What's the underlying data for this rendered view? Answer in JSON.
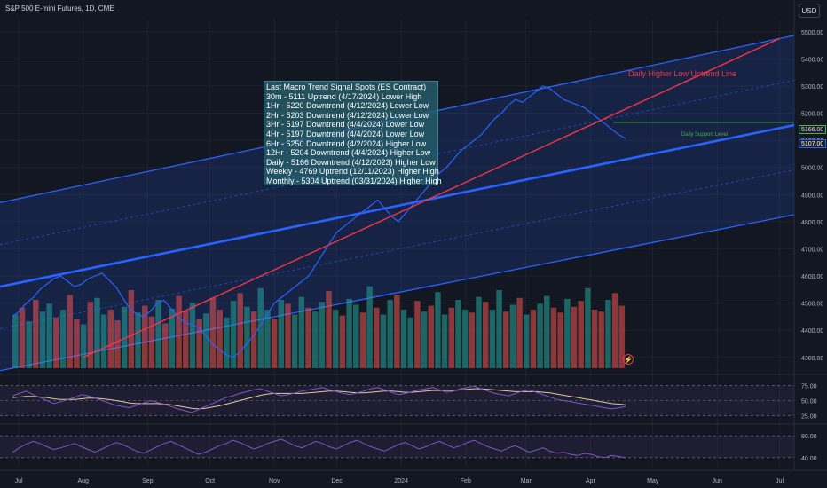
{
  "header": {
    "title": "S&P 500 E-mini Futures, 1D, CME",
    "currency": "USD"
  },
  "annotations": {
    "signal_box_lines": [
      "Last Macro Trend Signal Spots (ES Contract)",
      "30m - 5111 Uptrend (4/17/2024) Lower High",
      "1Hr - 5220 Downtrend (4/12/2024) Lower Low",
      "2Hr - 5203 Downtrend (4/12/2024) Lower Low",
      "3Hr - 5197 Downtrend (4/4/2024) Lower Low",
      "4Hr - 5197 Downtrend (4/4/2024) Lower Low",
      "6Hr - 5250 Downtrend (4/2/2024) Higher Low",
      "12Hr - 5204 Downtrend (4/4/2024) Higher Low",
      "Daily - 5166 Downtrend (4/12/2023) Higher Low",
      "Weekly - 4769 Uptrend (12/11/2023) Higher High",
      "Monthly - 5304 Uptrend (03/31/2024) Higher High"
    ],
    "trend_line_label": "Daily Higher Low Uptrend Line",
    "support_label": "Daily Support Level",
    "support_price": "5166.00",
    "last_price": "5107.00",
    "icon": "lightning-icon"
  },
  "chart_data": {
    "type": "line",
    "price_axis": {
      "ticks": [
        "5500.00",
        "5400.00",
        "5300.00",
        "5200.00",
        "5100.00",
        "5000.00",
        "4900.00",
        "4800.00",
        "4700.00",
        "4600.00",
        "4500.00",
        "4400.00",
        "4300.00"
      ],
      "ylim": [
        4260,
        5545
      ]
    },
    "time_axis": {
      "ticks": [
        "Jul",
        "Aug",
        "Sep",
        "Oct",
        "Nov",
        "Dec",
        "2024",
        "Feb",
        "Mar",
        "Apr",
        "May",
        "Jun",
        "Jul"
      ]
    },
    "price_series": {
      "name": "",
      "x_start": "2023-06-28",
      "x_end": "2024-04-18",
      "values": [
        4450,
        4470,
        4500,
        4520,
        4550,
        4570,
        4590,
        4600,
        4580,
        4560,
        4570,
        4590,
        4600,
        4610,
        4585,
        4560,
        4520,
        4480,
        4460,
        4450,
        4470,
        4500,
        4510,
        4480,
        4450,
        4430,
        4420,
        4410,
        4380,
        4350,
        4330,
        4310,
        4300,
        4320,
        4350,
        4380,
        4420,
        4460,
        4500,
        4520,
        4540,
        4560,
        4580,
        4600,
        4640,
        4680,
        4720,
        4760,
        4780,
        4800,
        4820,
        4840,
        4860,
        4880,
        4850,
        4820,
        4800,
        4830,
        4860,
        4890,
        4920,
        4950,
        4980,
        5000,
        5030,
        5060,
        5080,
        5100,
        5120,
        5150,
        5180,
        5200,
        5230,
        5250,
        5240,
        5260,
        5280,
        5300,
        5290,
        5270,
        5250,
        5240,
        5230,
        5220,
        5200,
        5180,
        5160,
        5140,
        5120,
        5107
      ],
      "color": "#2962ff"
    },
    "channel": {
      "upper_line": {
        "x": [
          "2023-06-28",
          "2024-07-01"
        ],
        "y": [
          4880,
          5475
        ]
      },
      "mid_line": {
        "x": [
          "2023-06-28",
          "2024-07-01"
        ],
        "y": [
          4570,
          5145
        ]
      },
      "lower_line": {
        "x": [
          "2023-06-28",
          "2024-07-01"
        ],
        "y": [
          4260,
          4815
        ]
      },
      "color": "#2962ff"
    },
    "uptrend_line": {
      "x": [
        "2023-08-01",
        "2024-07-01"
      ],
      "y": [
        4300,
        5475
      ],
      "color": "#f23645"
    },
    "support_level": {
      "y": 5166,
      "color": "#4caf50"
    },
    "volume": {
      "up_color": "#26a69a",
      "down_color": "#ef5350",
      "values": [
        0.55,
        0.62,
        0.48,
        0.7,
        0.58,
        0.66,
        0.52,
        0.6,
        0.75,
        0.5,
        0.45,
        0.68,
        0.72,
        0.55,
        0.6,
        0.49,
        0.63,
        0.8,
        0.57,
        0.64,
        0.53,
        0.7,
        0.46,
        0.61,
        0.74,
        0.59,
        0.67,
        0.5,
        0.56,
        0.72,
        0.6,
        0.52,
        0.69,
        0.77,
        0.63,
        0.58,
        0.82,
        0.6,
        0.51,
        0.7,
        0.66,
        0.55,
        0.73,
        0.62,
        0.58,
        0.68,
        0.79,
        0.6,
        0.54,
        0.71,
        0.65,
        0.57,
        0.84,
        0.62,
        0.55,
        0.7,
        0.75,
        0.6,
        0.52,
        0.69,
        0.58,
        0.64,
        0.78,
        0.55,
        0.62,
        0.7,
        0.6,
        0.57,
        0.73,
        0.68,
        0.6,
        0.8,
        0.58,
        0.65,
        0.72,
        0.55,
        0.6,
        0.66,
        0.74,
        0.62,
        0.57,
        0.71,
        0.63,
        0.69,
        0.82,
        0.6,
        0.58,
        0.7,
        0.77,
        0.64
      ],
      "directions": [
        1,
        0,
        1,
        0,
        1,
        1,
        0,
        1,
        0,
        0,
        1,
        0,
        1,
        1,
        0,
        0,
        1,
        0,
        1,
        0,
        0,
        1,
        0,
        1,
        0,
        0,
        1,
        0,
        1,
        0,
        0,
        1,
        1,
        0,
        1,
        0,
        1,
        1,
        0,
        1,
        0,
        1,
        1,
        0,
        1,
        1,
        0,
        1,
        0,
        1,
        1,
        0,
        1,
        0,
        1,
        1,
        0,
        1,
        1,
        0,
        1,
        0,
        1,
        1,
        0,
        1,
        1,
        0,
        1,
        0,
        1,
        1,
        0,
        1,
        0,
        1,
        0,
        1,
        1,
        0,
        0,
        1,
        0,
        0,
        1,
        0,
        0,
        1,
        0,
        0
      ]
    },
    "rsi_panel": {
      "ticks": [
        "75.00",
        "50.00",
        "25.00"
      ],
      "ylim": [
        15,
        85
      ],
      "line_color": "#7e57c2",
      "ma_color": "#e0c9a0",
      "values": [
        58,
        62,
        66,
        60,
        55,
        50,
        45,
        48,
        52,
        55,
        60,
        58,
        54,
        50,
        46,
        42,
        40,
        38,
        42,
        46,
        50,
        47,
        44,
        40,
        36,
        33,
        30,
        35,
        40,
        45,
        50,
        55,
        58,
        62,
        65,
        68,
        70,
        66,
        62,
        58,
        60,
        63,
        66,
        68,
        70,
        72,
        68,
        65,
        62,
        60,
        63,
        66,
        70,
        72,
        68,
        64,
        60,
        62,
        65,
        68,
        70,
        72,
        68,
        64,
        66,
        70,
        72,
        74,
        70,
        66,
        62,
        60,
        58,
        62,
        66,
        68,
        64,
        60,
        56,
        52,
        50,
        48,
        46,
        44,
        42,
        40,
        38,
        36,
        38,
        40
      ],
      "ma_values": [
        55,
        56,
        57,
        57,
        56,
        55,
        53,
        52,
        52,
        52,
        53,
        54,
        54,
        53,
        52,
        50,
        48,
        46,
        45,
        45,
        45,
        45,
        44,
        43,
        41,
        39,
        37,
        36,
        37,
        39,
        41,
        44,
        47,
        50,
        53,
        56,
        59,
        61,
        62,
        62,
        62,
        62,
        62,
        63,
        64,
        65,
        66,
        66,
        65,
        64,
        63,
        63,
        64,
        65,
        66,
        66,
        65,
        64,
        64,
        65,
        66,
        67,
        67,
        67,
        67,
        68,
        69,
        70,
        70,
        69,
        68,
        67,
        66,
        65,
        65,
        65,
        65,
        64,
        63,
        61,
        59,
        57,
        55,
        53,
        51,
        49,
        47,
        45,
        44,
        43
      ]
    },
    "osc_panel": {
      "ticks": [
        "80.00",
        "40.00"
      ],
      "ylim": [
        25,
        95
      ],
      "line_color": "#7e57c2",
      "values": [
        50,
        58,
        65,
        70,
        66,
        60,
        55,
        58,
        62,
        66,
        60,
        55,
        50,
        56,
        62,
        68,
        64,
        58,
        52,
        48,
        54,
        60,
        66,
        70,
        64,
        58,
        52,
        46,
        50,
        56,
        62,
        66,
        72,
        68,
        62,
        56,
        60,
        66,
        70,
        74,
        68,
        62,
        58,
        64,
        70,
        66,
        60,
        56,
        62,
        68,
        72,
        66,
        60,
        56,
        52,
        58,
        64,
        68,
        62,
        56,
        60,
        66,
        70,
        64,
        58,
        62,
        68,
        72,
        66,
        60,
        56,
        52,
        58,
        62,
        56,
        50,
        54,
        58,
        52,
        48,
        50,
        46,
        44,
        48,
        46,
        42,
        40,
        44,
        42,
        40
      ]
    }
  }
}
